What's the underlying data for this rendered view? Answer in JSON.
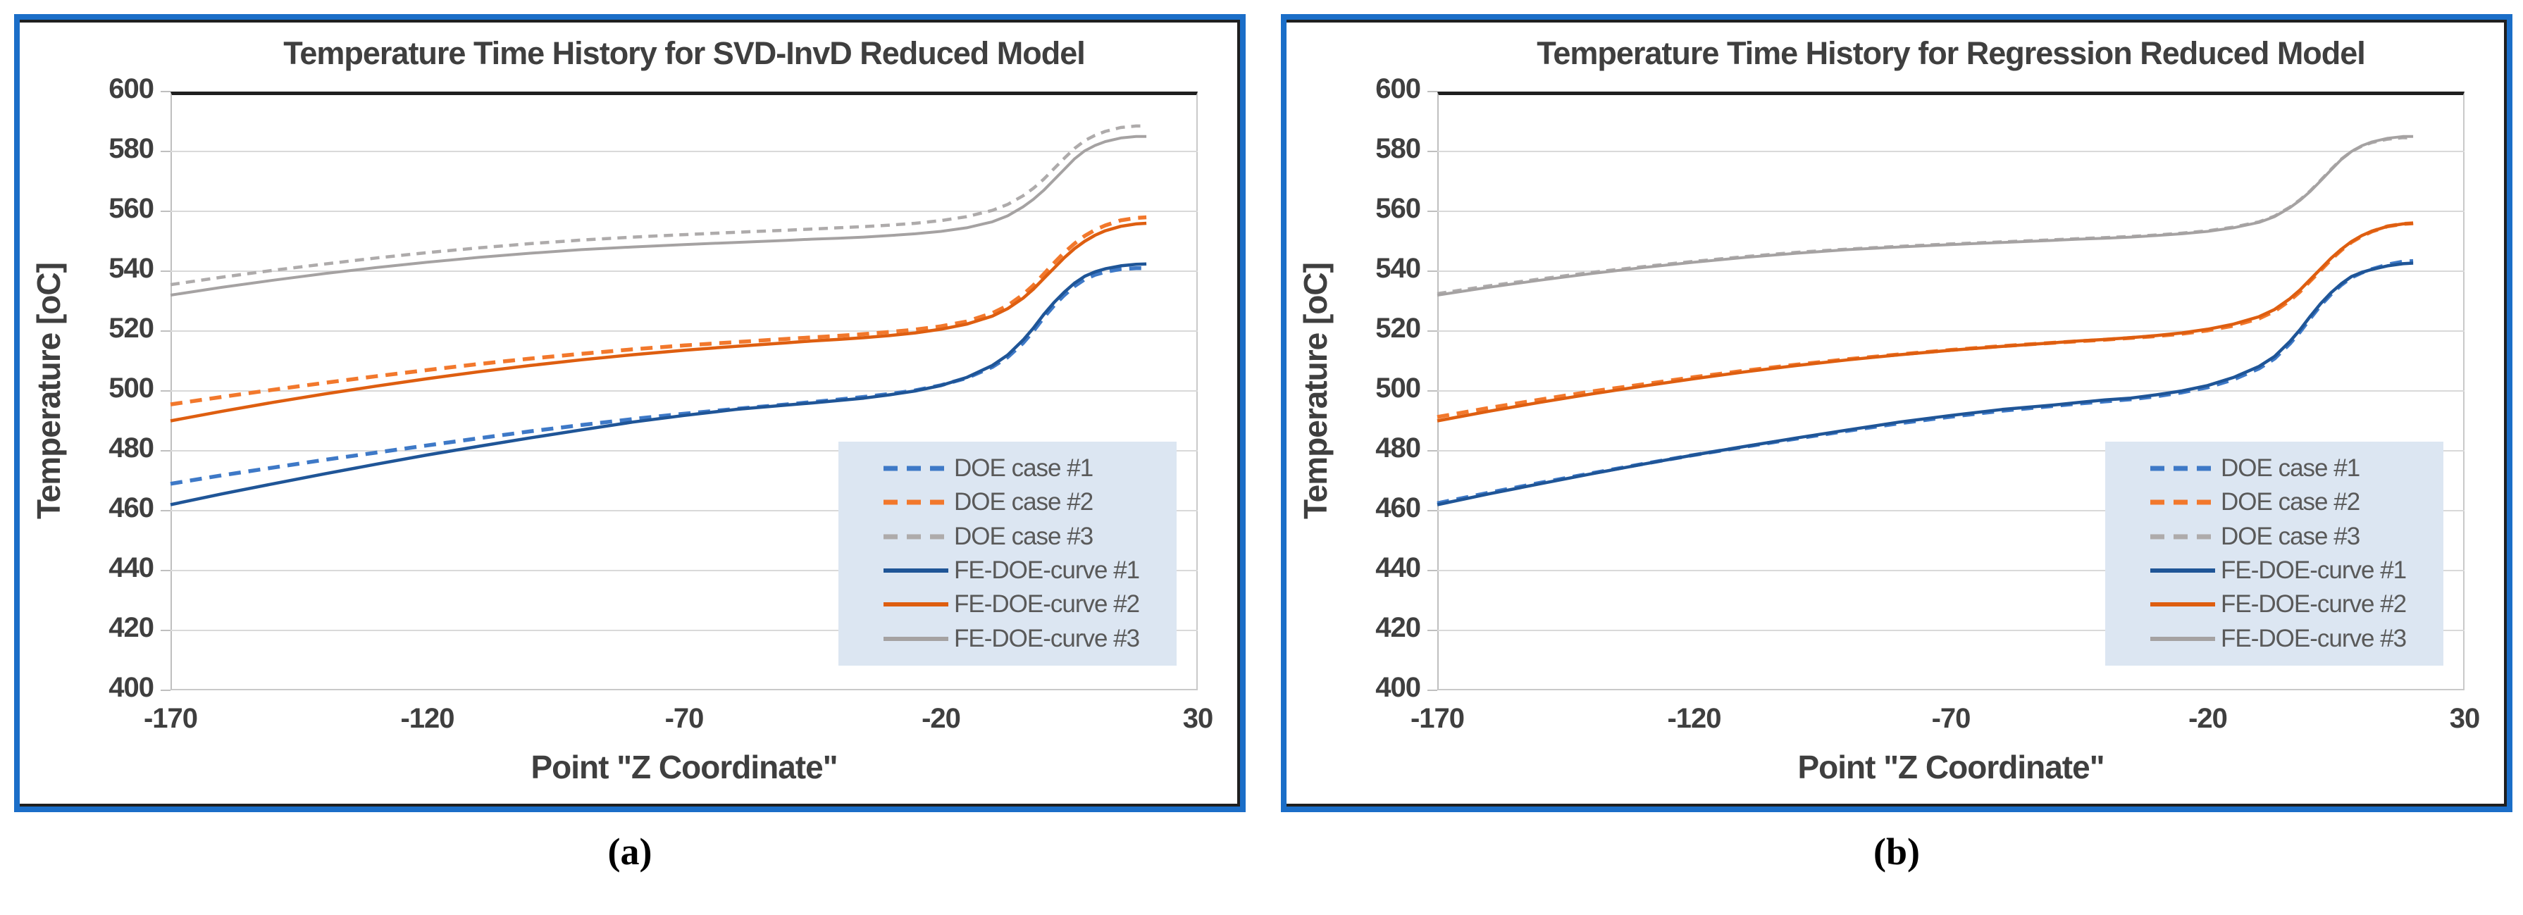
{
  "figure": {
    "captions": [
      "(a)",
      "(b)"
    ]
  },
  "theme": {
    "panel_border": "#1B6EC8",
    "inner_border": "#1F1F1F",
    "grid_color": "#D9D9D9",
    "axis_color": "#BFBFBF",
    "text_color": "#3F3F3F",
    "legend_bg": "#DCE6F2",
    "legend_text": "#595959"
  },
  "chart_data": [
    {
      "type": "line",
      "title": "Temperature Time History for SVD-InvD Reduced Model",
      "xlabel": "Point \"Z Coordinate\"",
      "ylabel": "Temperature [oC]",
      "xlim": [
        -170,
        30
      ],
      "ylim": [
        400,
        600
      ],
      "x_ticks": [
        -170,
        -120,
        -70,
        -20,
        30
      ],
      "y_tick_step": 20,
      "grid": "horizontal",
      "legend_position": "lower-right",
      "x": [
        -170,
        -160,
        -150,
        -140,
        -130,
        -120,
        -110,
        -100,
        -90,
        -80,
        -70,
        -60,
        -50,
        -45,
        -40,
        -35,
        -30,
        -25,
        -20,
        -15,
        -10,
        -7,
        -4,
        -2,
        0,
        2,
        4,
        6,
        8,
        10,
        12,
        15,
        18,
        20
      ],
      "series": [
        {
          "name": "DOE case #1",
          "color": "#3E79C7",
          "style": "dashed",
          "dash": "17 11",
          "width": 5.5,
          "values": [
            469,
            471.8,
            474.4,
            477,
            479.4,
            481.8,
            484.2,
            486.5,
            488.6,
            490.6,
            492.4,
            494,
            495.5,
            496.3,
            497.1,
            498,
            499,
            500.2,
            501.9,
            504.3,
            508,
            511.3,
            516,
            520,
            524.5,
            528.5,
            532,
            535,
            537.3,
            538.8,
            539.8,
            540.7,
            541,
            541
          ]
        },
        {
          "name": "DOE case #2",
          "color": "#F2782C",
          "style": "dashed",
          "dash": "17 11",
          "width": 5.5,
          "values": [
            495.5,
            498,
            500.4,
            502.7,
            504.9,
            507,
            509,
            510.8,
            512.4,
            513.9,
            515.2,
            516.3,
            517.4,
            517.9,
            518.4,
            519,
            519.7,
            520.5,
            521.6,
            523.2,
            526,
            528.5,
            532.2,
            535.3,
            539,
            542.7,
            546.2,
            549.2,
            551.8,
            553.8,
            555.3,
            557,
            557.8,
            558
          ]
        },
        {
          "name": "DOE case #3",
          "color": "#AEABAB",
          "style": "dashed",
          "dash": "13 9",
          "width": 4.5,
          "values": [
            535.5,
            538,
            540.3,
            542.4,
            544.4,
            546.2,
            547.8,
            549.2,
            550.4,
            551.4,
            552.2,
            553,
            553.7,
            554.1,
            554.5,
            554.9,
            555.4,
            556,
            556.9,
            558.2,
            560.3,
            562.3,
            565.2,
            567.7,
            570.7,
            574.2,
            577.7,
            581,
            583.6,
            585.4,
            586.7,
            588,
            588.5,
            588.5
          ]
        },
        {
          "name": "FE-DOE-curve #1",
          "color": "#1F5597",
          "style": "solid",
          "dash": null,
          "width": 4.5,
          "values": [
            462,
            465.6,
            469,
            472.3,
            475.5,
            478.6,
            481.5,
            484.3,
            487,
            489.6,
            491.8,
            493.8,
            495.3,
            496,
            496.8,
            497.6,
            498.7,
            500,
            501.8,
            504.5,
            508.5,
            512,
            517,
            521,
            525.5,
            529.5,
            533,
            536,
            538.3,
            539.8,
            540.8,
            541.8,
            542.3,
            542.4
          ]
        },
        {
          "name": "FE-DOE-curve #2",
          "color": "#DE5E10",
          "style": "solid",
          "dash": null,
          "width": 4.5,
          "values": [
            490,
            493.2,
            496.2,
            499,
            501.6,
            504.1,
            506.4,
            508.5,
            510.4,
            512.1,
            513.6,
            514.9,
            516.1,
            516.7,
            517.2,
            517.8,
            518.5,
            519.4,
            520.6,
            522.3,
            525,
            527.5,
            531,
            534,
            537.5,
            541,
            544.5,
            547.5,
            550,
            552,
            553.5,
            555,
            555.8,
            556
          ]
        },
        {
          "name": "FE-DOE-curve #3",
          "color": "#A5A2A2",
          "style": "solid",
          "dash": null,
          "width": 4,
          "values": [
            532,
            534.6,
            537,
            539.2,
            541.2,
            543,
            544.6,
            546,
            547.2,
            548.1,
            548.9,
            549.6,
            550.3,
            550.7,
            551,
            551.4,
            551.9,
            552.5,
            553.3,
            554.5,
            556.5,
            558.5,
            561.5,
            564,
            567,
            570.5,
            574,
            577.5,
            580.2,
            582,
            583.3,
            584.5,
            585,
            585
          ]
        }
      ]
    },
    {
      "type": "line",
      "title": "Temperature Time History for Regression Reduced Model",
      "xlabel": "Point \"Z Coordinate\"",
      "ylabel": "Temperature [oC]",
      "xlim": [
        -170,
        30
      ],
      "ylim": [
        400,
        600
      ],
      "x_ticks": [
        -170,
        -120,
        -70,
        -20,
        30
      ],
      "y_tick_step": 20,
      "grid": "horizontal",
      "legend_position": "lower-right",
      "x": [
        -170,
        -160,
        -150,
        -140,
        -130,
        -120,
        -110,
        -100,
        -90,
        -80,
        -70,
        -60,
        -50,
        -45,
        -40,
        -35,
        -30,
        -25,
        -20,
        -15,
        -10,
        -7,
        -4,
        -2,
        0,
        2,
        4,
        6,
        8,
        10,
        12,
        15,
        18,
        20
      ],
      "series": [
        {
          "name": "DOE case #1",
          "color": "#3E79C7",
          "style": "dashed",
          "dash": "17 11",
          "width": 5.5,
          "values": [
            462.5,
            466,
            469.3,
            472.5,
            475.6,
            478.6,
            481.4,
            484.1,
            486.7,
            489.2,
            491.4,
            493.4,
            495,
            495.8,
            496.5,
            497.2,
            498.2,
            499.5,
            501.2,
            503.8,
            507.5,
            510.8,
            515.8,
            519.8,
            524.3,
            528.6,
            532.3,
            535.4,
            537.9,
            539.5,
            540.7,
            542.2,
            543.2,
            543.4
          ]
        },
        {
          "name": "DOE case #2",
          "color": "#F2782C",
          "style": "dashed",
          "dash": "17 11",
          "width": 5.5,
          "values": [
            491.3,
            494.3,
            497.1,
            499.8,
            502.2,
            504.6,
            506.8,
            508.8,
            510.6,
            512.2,
            513.7,
            515,
            516.1,
            516.6,
            517.1,
            517.7,
            518.3,
            519.1,
            520.2,
            521.8,
            524.2,
            526.6,
            530.2,
            533.2,
            536.8,
            540.3,
            543.9,
            547,
            549.7,
            551.7,
            553.3,
            555,
            555.8,
            556
          ]
        },
        {
          "name": "DOE case #3",
          "color": "#AEABAB",
          "style": "dashed",
          "dash": "13 9",
          "width": 4.5,
          "values": [
            532.5,
            535.1,
            537.4,
            539.6,
            541.5,
            543.3,
            544.9,
            546.3,
            547.4,
            548.3,
            549.1,
            549.8,
            550.5,
            550.9,
            551.2,
            551.6,
            552.1,
            552.7,
            553.5,
            554.7,
            556.5,
            558.4,
            561.4,
            563.9,
            566.9,
            570.4,
            574,
            577.4,
            580,
            581.8,
            583,
            584.1,
            584.6,
            584.5
          ]
        },
        {
          "name": "FE-DOE-curve #1",
          "color": "#1F5597",
          "style": "solid",
          "dash": null,
          "width": 4.5,
          "values": [
            462,
            465.6,
            469,
            472.3,
            475.5,
            478.6,
            481.5,
            484.3,
            487,
            489.6,
            491.8,
            493.8,
            495.3,
            496.2,
            497,
            497.6,
            498.7,
            500,
            501.8,
            504.5,
            508.2,
            511.5,
            516.5,
            520.5,
            525,
            529.2,
            532.8,
            535.8,
            538.2,
            539.6,
            540.6,
            541.8,
            542.5,
            542.7
          ]
        },
        {
          "name": "FE-DOE-curve #2",
          "color": "#DE5E10",
          "style": "solid",
          "dash": null,
          "width": 4.5,
          "values": [
            490,
            493.2,
            496.2,
            499,
            501.6,
            504.1,
            506.4,
            508.5,
            510.4,
            512.1,
            513.6,
            514.9,
            516.1,
            516.7,
            517.2,
            517.8,
            518.5,
            519.4,
            520.6,
            522.3,
            524.8,
            527.2,
            530.8,
            533.8,
            537.3,
            540.8,
            544.3,
            547.3,
            549.9,
            551.9,
            553.4,
            555,
            555.8,
            556
          ]
        },
        {
          "name": "FE-DOE-curve #3",
          "color": "#A5A2A2",
          "style": "solid",
          "dash": null,
          "width": 4,
          "values": [
            532,
            534.6,
            537,
            539.2,
            541.2,
            543,
            544.6,
            546,
            547.2,
            548.1,
            548.9,
            549.6,
            550.3,
            550.7,
            551,
            551.4,
            551.9,
            552.5,
            553.3,
            554.5,
            556.3,
            558.2,
            561.2,
            563.7,
            566.7,
            570.2,
            573.8,
            577.3,
            580,
            581.9,
            583.2,
            584.4,
            585,
            585
          ]
        }
      ]
    }
  ]
}
